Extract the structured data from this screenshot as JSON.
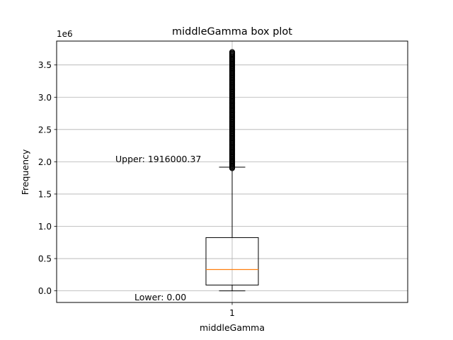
{
  "chart_data": {
    "type": "box",
    "title": "middleGamma box plot",
    "xlabel": "middleGamma",
    "ylabel": "Frequency",
    "y_offset_label": "1e6",
    "category": "1",
    "ylim": [
      -180000,
      3870000
    ],
    "y_ticks": [
      0,
      500000,
      1000000,
      1500000,
      2000000,
      2500000,
      3000000,
      3500000
    ],
    "y_tick_labels": [
      "0.0",
      "0.5",
      "1.0",
      "1.5",
      "2.0",
      "2.5",
      "3.0",
      "3.5"
    ],
    "grid": true,
    "box": {
      "whisker_low": 0,
      "q1": 90000,
      "median": 330000,
      "q3": 825000,
      "whisker_high": 1916000.37,
      "outlier_min": 1900000,
      "outlier_max": 3700000
    },
    "annotations": [
      {
        "text": "Upper: 1916000.37",
        "value": 1916000.37
      },
      {
        "text": "Lower: 0.00",
        "value": 0
      }
    ],
    "colors": {
      "median": "#ff7f0e",
      "grid": "#b0b0b0",
      "box": "#000000"
    }
  }
}
